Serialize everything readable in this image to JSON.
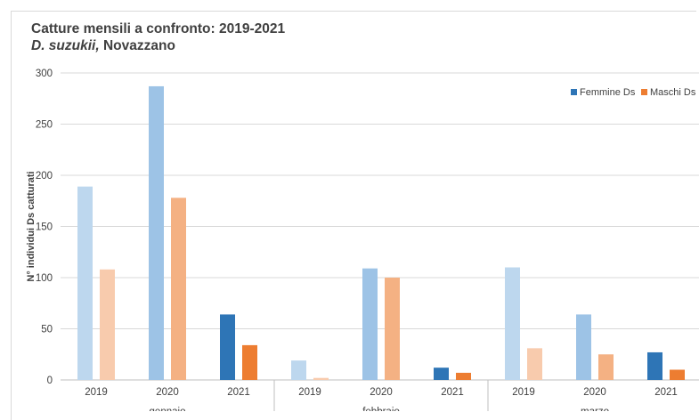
{
  "chart_data": {
    "type": "bar",
    "title": "Catture mensili a confronto: 2019-2021",
    "subtitle_species": "D. suzukii,",
    "subtitle_place": "Novazzano",
    "ylabel": "N° individui Ds catturati",
    "ylim": [
      0,
      300
    ],
    "yticks": [
      "0",
      "50",
      "100",
      "150",
      "200",
      "250",
      "300"
    ],
    "grid": true,
    "legend_position": "top-right",
    "groups": [
      "gennaio",
      "febbraio",
      "marzo"
    ],
    "years": [
      "2019",
      "2020",
      "2021"
    ],
    "series": [
      {
        "name": "Femmine Ds",
        "color": "#2e75b6",
        "year_colors": [
          "#bdd7ee",
          "#9dc3e6",
          "#2e75b6"
        ],
        "values": [
          189,
          287,
          64,
          19,
          109,
          12,
          110,
          64,
          27
        ]
      },
      {
        "name": "Maschi Ds",
        "color": "#ed7d31",
        "year_colors": [
          "#f8cbad",
          "#f4b183",
          "#ed7d31"
        ],
        "values": [
          108,
          178,
          34,
          2,
          100,
          7,
          31,
          25,
          10
        ]
      }
    ]
  }
}
